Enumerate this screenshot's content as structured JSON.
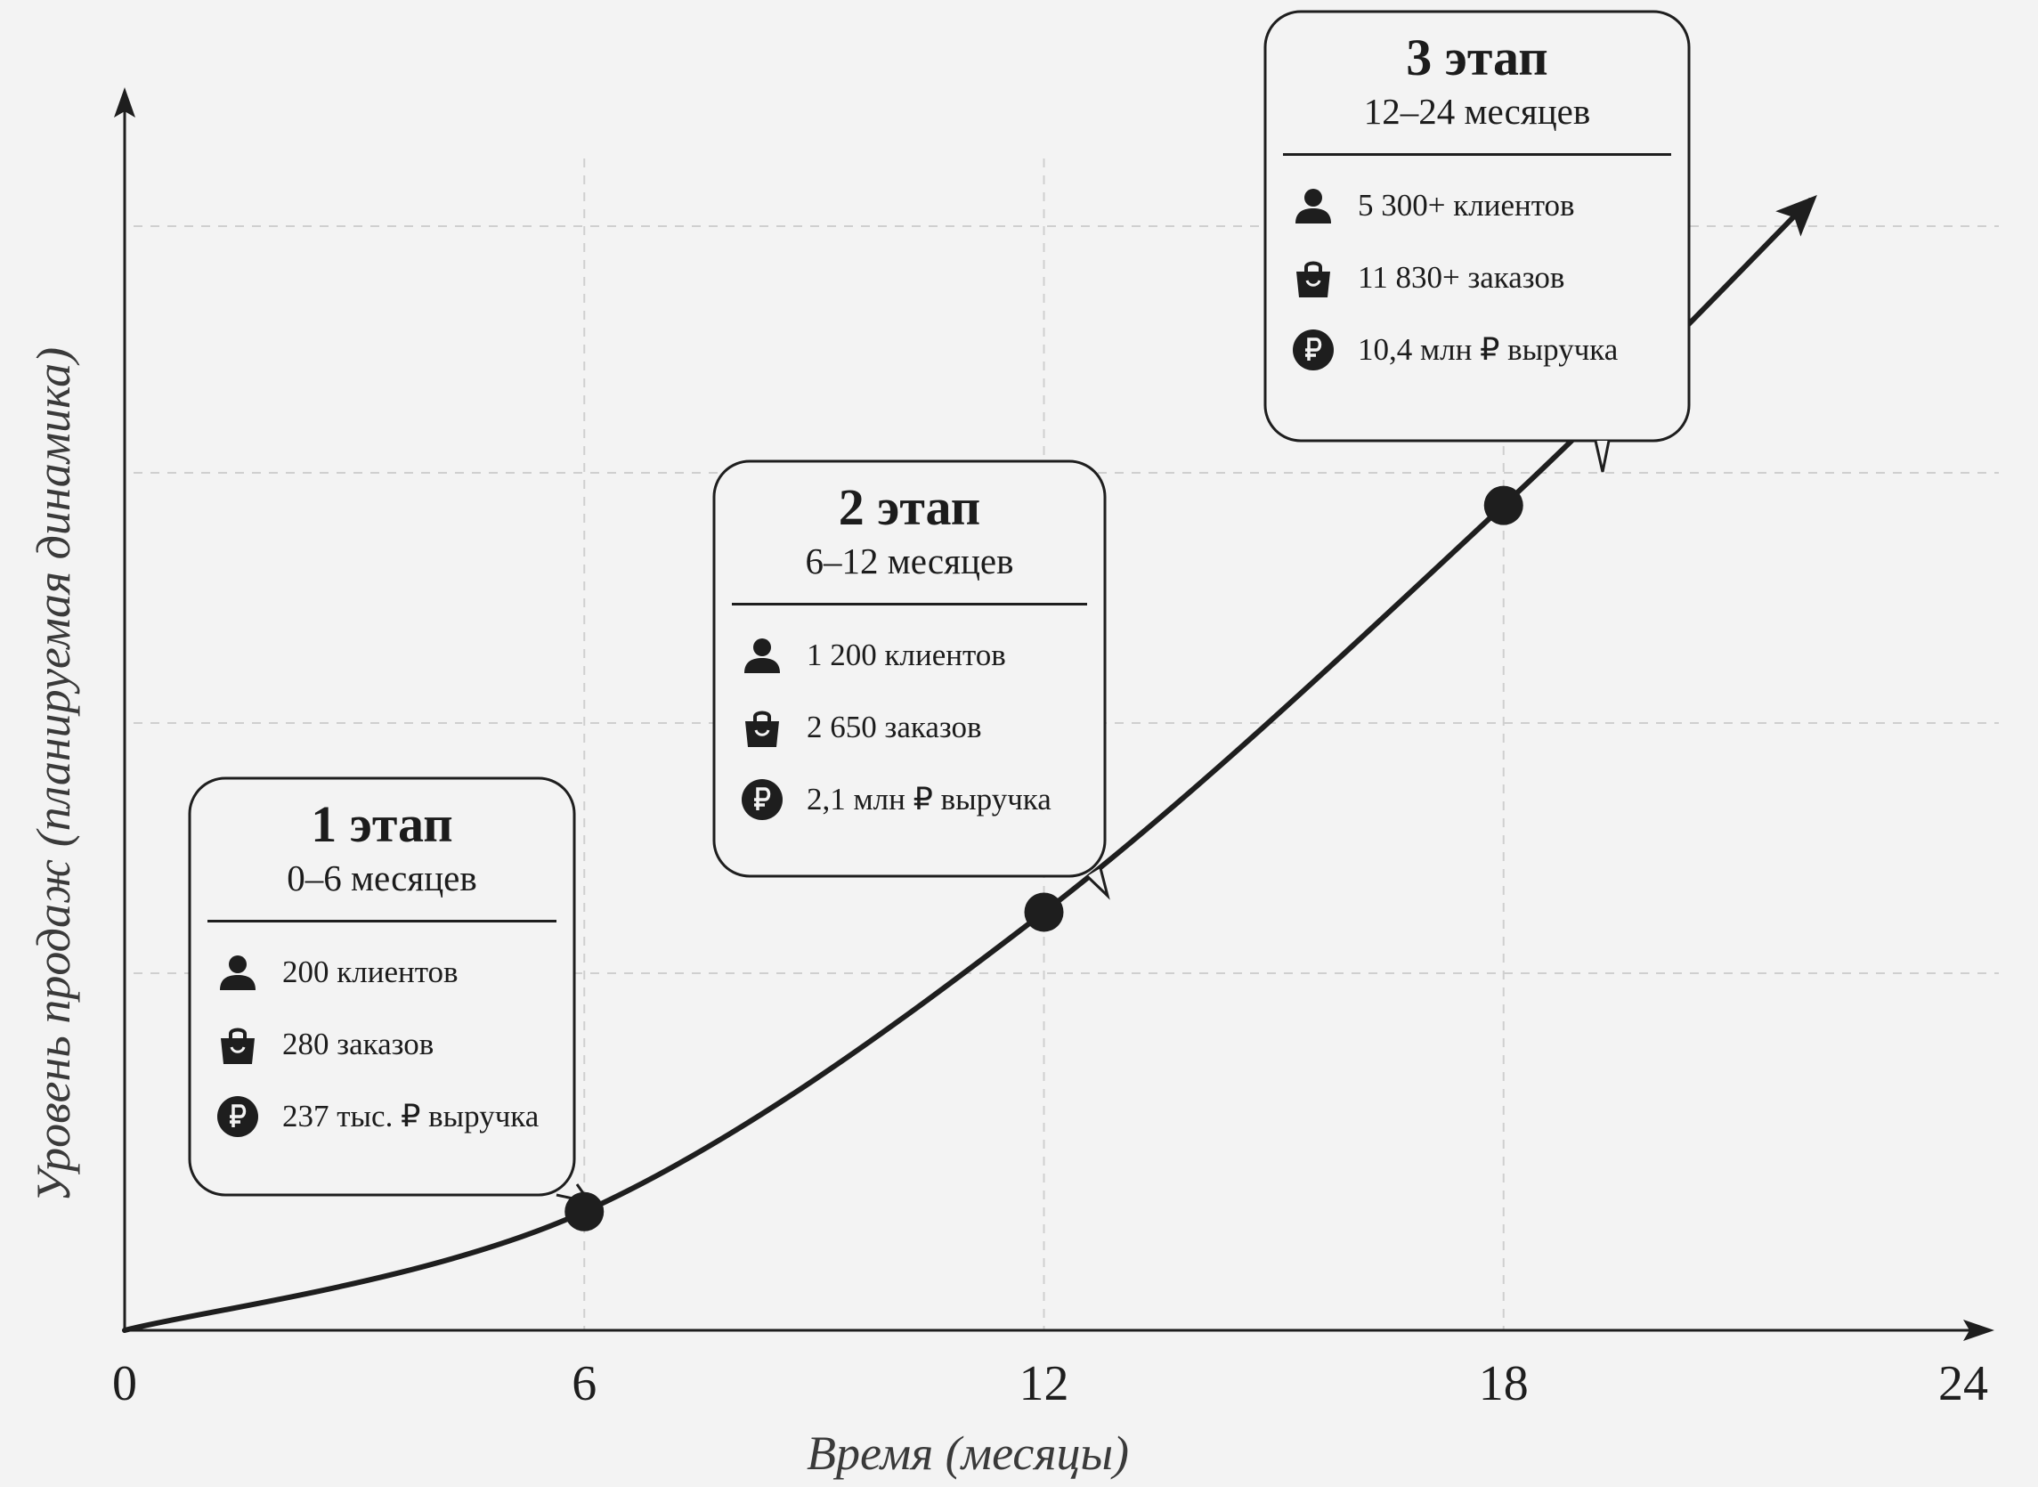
{
  "chart_data": {
    "type": "line",
    "xlabel": "Время (месяцы)",
    "ylabel": "Уровень продаж (планируемая динамика)",
    "x_ticks": [
      "0",
      "6",
      "12",
      "18",
      "24"
    ],
    "xlim": [
      0,
      24
    ],
    "grid": true,
    "y_scale": "relative (no numeric ticks)",
    "series": [
      {
        "points": [
          [
            0,
            0
          ],
          [
            6,
            0.105
          ],
          [
            12,
            0.37
          ],
          [
            18,
            0.73
          ],
          [
            22,
            1.0
          ]
        ]
      }
    ],
    "highlighted_points": [
      [
        6,
        0.105
      ],
      [
        12,
        0.37
      ],
      [
        18,
        0.73
      ]
    ]
  },
  "stages": [
    {
      "title": "1 этап",
      "period": "0–6 месяцев",
      "x": 6,
      "stats": [
        {
          "icon": "person-icon",
          "text": "200 клиентов"
        },
        {
          "icon": "shopping-bag-icon",
          "text": "280 заказов"
        },
        {
          "icon": "ruble-icon",
          "text": "237 тыс. ₽ выручка"
        }
      ]
    },
    {
      "title": "2 этап",
      "period": "6–12 месяцев",
      "x": 12,
      "stats": [
        {
          "icon": "person-icon",
          "text": "1 200 клиентов"
        },
        {
          "icon": "shopping-bag-icon",
          "text": "2 650 заказов"
        },
        {
          "icon": "ruble-icon",
          "text": "2,1 млн ₽ выручка"
        }
      ]
    },
    {
      "title": "3 этап",
      "period": "12–24 месяцев",
      "x": 18,
      "stats": [
        {
          "icon": "person-icon",
          "text": "5 300+ клиентов"
        },
        {
          "icon": "shopping-bag-icon",
          "text": "11 830+ заказов"
        },
        {
          "icon": "ruble-icon",
          "text": "10,4 млн ₽ выручка"
        }
      ]
    }
  ],
  "colors": {
    "background": "#f3f3f3",
    "ink": "#1e1e1e",
    "grid": "#cfcfcf"
  }
}
